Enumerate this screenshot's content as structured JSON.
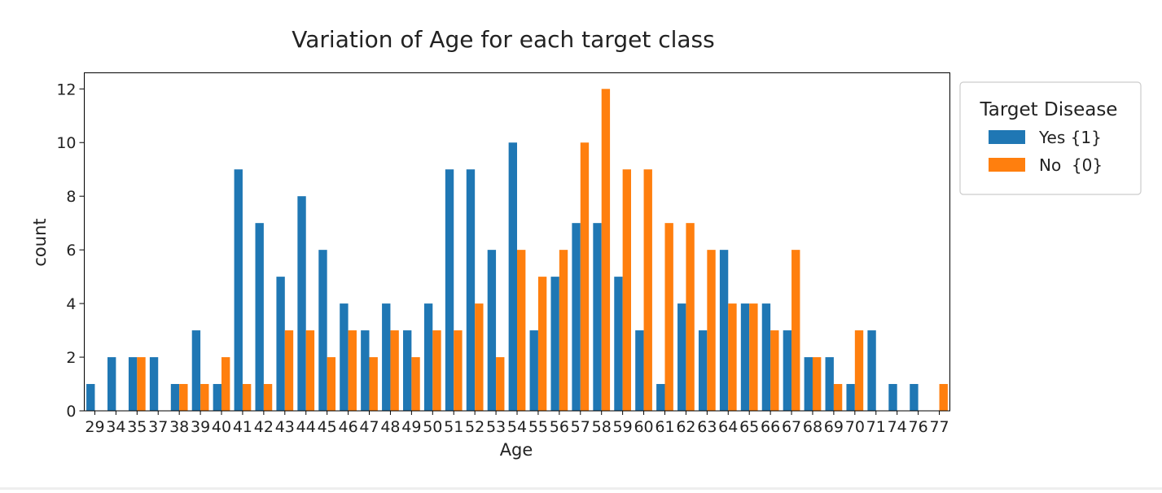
{
  "chart_data": {
    "type": "bar",
    "title": "Variation of Age for each target class",
    "xlabel": "Age",
    "ylabel": "count",
    "ylim": [
      0,
      12.6
    ],
    "yticks": [
      0,
      2,
      4,
      6,
      8,
      10,
      12
    ],
    "grid": false,
    "legend": {
      "title": "Target Disease",
      "placement": "outside-right-top"
    },
    "categories": [
      "29",
      "34",
      "35",
      "37",
      "38",
      "39",
      "40",
      "41",
      "42",
      "43",
      "44",
      "45",
      "46",
      "47",
      "48",
      "49",
      "50",
      "51",
      "52",
      "53",
      "54",
      "55",
      "56",
      "57",
      "58",
      "59",
      "60",
      "61",
      "62",
      "63",
      "64",
      "65",
      "66",
      "67",
      "68",
      "69",
      "70",
      "71",
      "74",
      "76",
      "77"
    ],
    "series": [
      {
        "name": "Yes {1}",
        "color": "#1f77b4",
        "values": [
          1,
          2,
          2,
          2,
          1,
          3,
          1,
          9,
          7,
          5,
          8,
          6,
          4,
          3,
          4,
          3,
          4,
          9,
          9,
          6,
          10,
          3,
          5,
          7,
          7,
          5,
          3,
          1,
          4,
          3,
          6,
          4,
          4,
          3,
          2,
          2,
          1,
          3,
          1,
          1,
          0
        ]
      },
      {
        "name": "No  {0}",
        "color": "#ff7f0e",
        "values": [
          0,
          0,
          2,
          0,
          1,
          1,
          2,
          1,
          1,
          3,
          3,
          2,
          3,
          2,
          3,
          2,
          3,
          3,
          4,
          2,
          6,
          5,
          6,
          10,
          12,
          9,
          9,
          7,
          7,
          6,
          4,
          4,
          3,
          6,
          2,
          1,
          3,
          0,
          0,
          0,
          1
        ]
      }
    ]
  }
}
